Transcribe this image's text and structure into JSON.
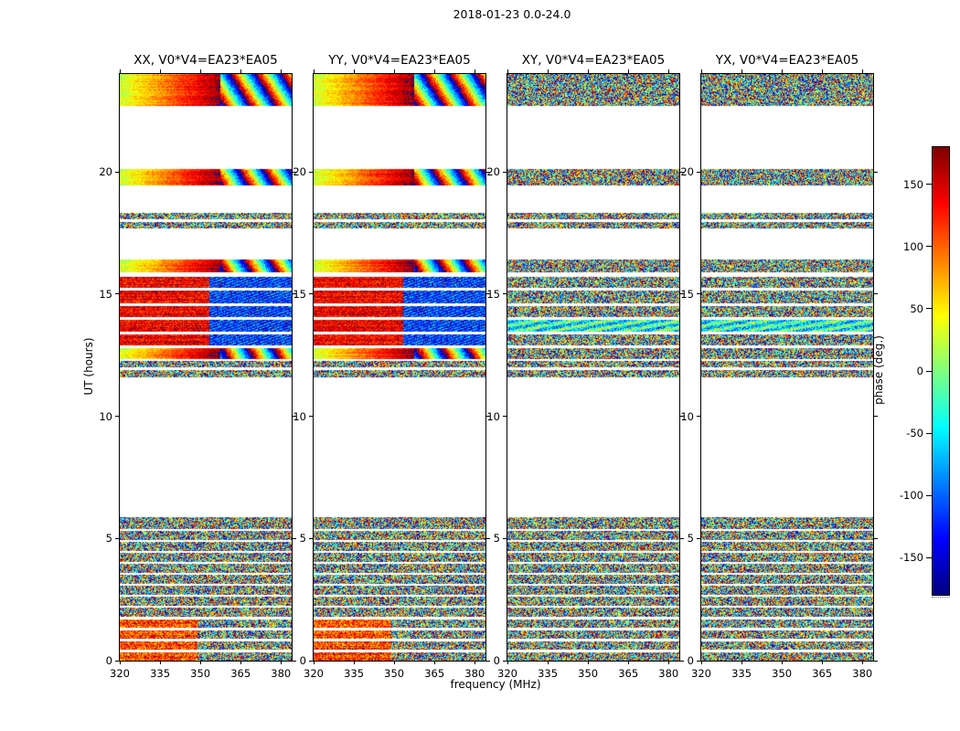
{
  "figure": {
    "title": "2018-01-23 0.0-24.0",
    "xlabel": "frequency (MHz)",
    "ylabel": "UT (hours)",
    "colorbar_label": "phase (deg.)"
  },
  "panels": [
    {
      "id": "XX",
      "title": "XX, V0*V4=EA23*EA05"
    },
    {
      "id": "YY",
      "title": "YY, V0*V4=EA23*EA05"
    },
    {
      "id": "XY",
      "title": "XY, V0*V4=EA23*EA05"
    },
    {
      "id": "YX",
      "title": "YX, V0*V4=EA23*EA05"
    }
  ],
  "axes": {
    "x_ticks": [
      320,
      335,
      350,
      365,
      380
    ],
    "y_ticks": [
      0,
      5,
      10,
      15,
      20
    ]
  },
  "colorbar": {
    "ticks": [
      150,
      100,
      50,
      0,
      -50,
      -100,
      -150
    ],
    "min": -180,
    "max": 180
  },
  "chart_data": {
    "type": "heatmap",
    "title": "2018-01-23 0.0-24.0",
    "xlabel": "frequency (MHz)",
    "ylabel": "UT (hours)",
    "zlabel": "phase (deg.)",
    "colormap": "jet",
    "x_range_mhz": [
      320,
      384
    ],
    "y_range_hours": [
      0,
      24
    ],
    "z_range_deg": [
      -180,
      180
    ],
    "colorbar_ticks_deg": [
      150,
      100,
      50,
      0,
      -50,
      -100,
      -150
    ],
    "panels": [
      "XX, V0*V4=EA23*EA05",
      "YY, V0*V4=EA23*EA05",
      "XY, V0*V4=EA23*EA05",
      "YX, V0*V4=EA23*EA05"
    ],
    "description": "Dynamic spectra of visibility phase vs frequency (320-384 MHz) and UT (0-24 h) for baseline EA23*EA05 on 2018-01-23, one panel per correlation (XX, YY, XY, YX). Data exist only in the listed time bands; white elsewhere. XX/YY show smooth warm-to-red phase ramps turning to wrapped blue stripes above ~357 MHz; XY/YX are mostly random noise-like phase.",
    "time_bands": [
      {
        "start": 22.7,
        "end": 24.0,
        "xx_yy": "gradient",
        "xy_yx": "noise"
      },
      {
        "start": 19.45,
        "end": 20.1,
        "xx_yy": "gradient",
        "xy_yx": "noise"
      },
      {
        "start": 18.05,
        "end": 18.3,
        "xx_yy": "noise",
        "xy_yx": "noise"
      },
      {
        "start": 17.7,
        "end": 17.95,
        "xx_yy": "noise",
        "xy_yx": "noise"
      },
      {
        "start": 15.9,
        "end": 16.4,
        "xx_yy": "gradient",
        "xy_yx": "noise"
      },
      {
        "start": 15.25,
        "end": 15.7,
        "xx_yy": "gradient2",
        "xy_yx": "noise"
      },
      {
        "start": 14.6,
        "end": 15.15,
        "xx_yy": "gradient2",
        "xy_yx": "noise"
      },
      {
        "start": 14.05,
        "end": 14.5,
        "xx_yy": "gradient2",
        "xy_yx": "noise"
      },
      {
        "start": 13.45,
        "end": 13.95,
        "xx_yy": "gradient2",
        "xy_yx": "cyan"
      },
      {
        "start": 12.9,
        "end": 13.35,
        "xx_yy": "gradient2",
        "xy_yx": "noise"
      },
      {
        "start": 12.35,
        "end": 12.8,
        "xx_yy": "gradient",
        "xy_yx": "noise"
      },
      {
        "start": 12.0,
        "end": 12.25,
        "xx_yy": "noise",
        "xy_yx": "noise"
      },
      {
        "start": 11.6,
        "end": 11.9,
        "xx_yy": "noise",
        "xy_yx": "noise"
      },
      {
        "start": 5.38,
        "end": 5.87,
        "xx_yy": "noise",
        "xy_yx": "noise"
      },
      {
        "start": 4.93,
        "end": 5.3,
        "xx_yy": "noise",
        "xy_yx": "noise"
      },
      {
        "start": 4.48,
        "end": 4.85,
        "xx_yy": "noise",
        "xy_yx": "noise"
      },
      {
        "start": 4.03,
        "end": 4.4,
        "xx_yy": "noise",
        "xy_yx": "noise"
      },
      {
        "start": 3.58,
        "end": 3.95,
        "xx_yy": "noise",
        "xy_yx": "noise"
      },
      {
        "start": 3.13,
        "end": 3.5,
        "xx_yy": "noise",
        "xy_yx": "noise"
      },
      {
        "start": 2.68,
        "end": 3.05,
        "xx_yy": "noise",
        "xy_yx": "noise"
      },
      {
        "start": 2.23,
        "end": 2.6,
        "xx_yy": "noise",
        "xy_yx": "noise"
      },
      {
        "start": 1.78,
        "end": 2.15,
        "xx_yy": "noise",
        "xy_yx": "noise"
      },
      {
        "start": 1.33,
        "end": 1.7,
        "xx_yy": "warmnoise",
        "xy_yx": "noise"
      },
      {
        "start": 0.88,
        "end": 1.25,
        "xx_yy": "warmnoise",
        "xy_yx": "noise"
      },
      {
        "start": 0.43,
        "end": 0.8,
        "xx_yy": "warmnoise",
        "xy_yx": "noise"
      },
      {
        "start": 0.0,
        "end": 0.35,
        "xx_yy": "warmnoise",
        "xy_yx": "noise"
      }
    ]
  }
}
